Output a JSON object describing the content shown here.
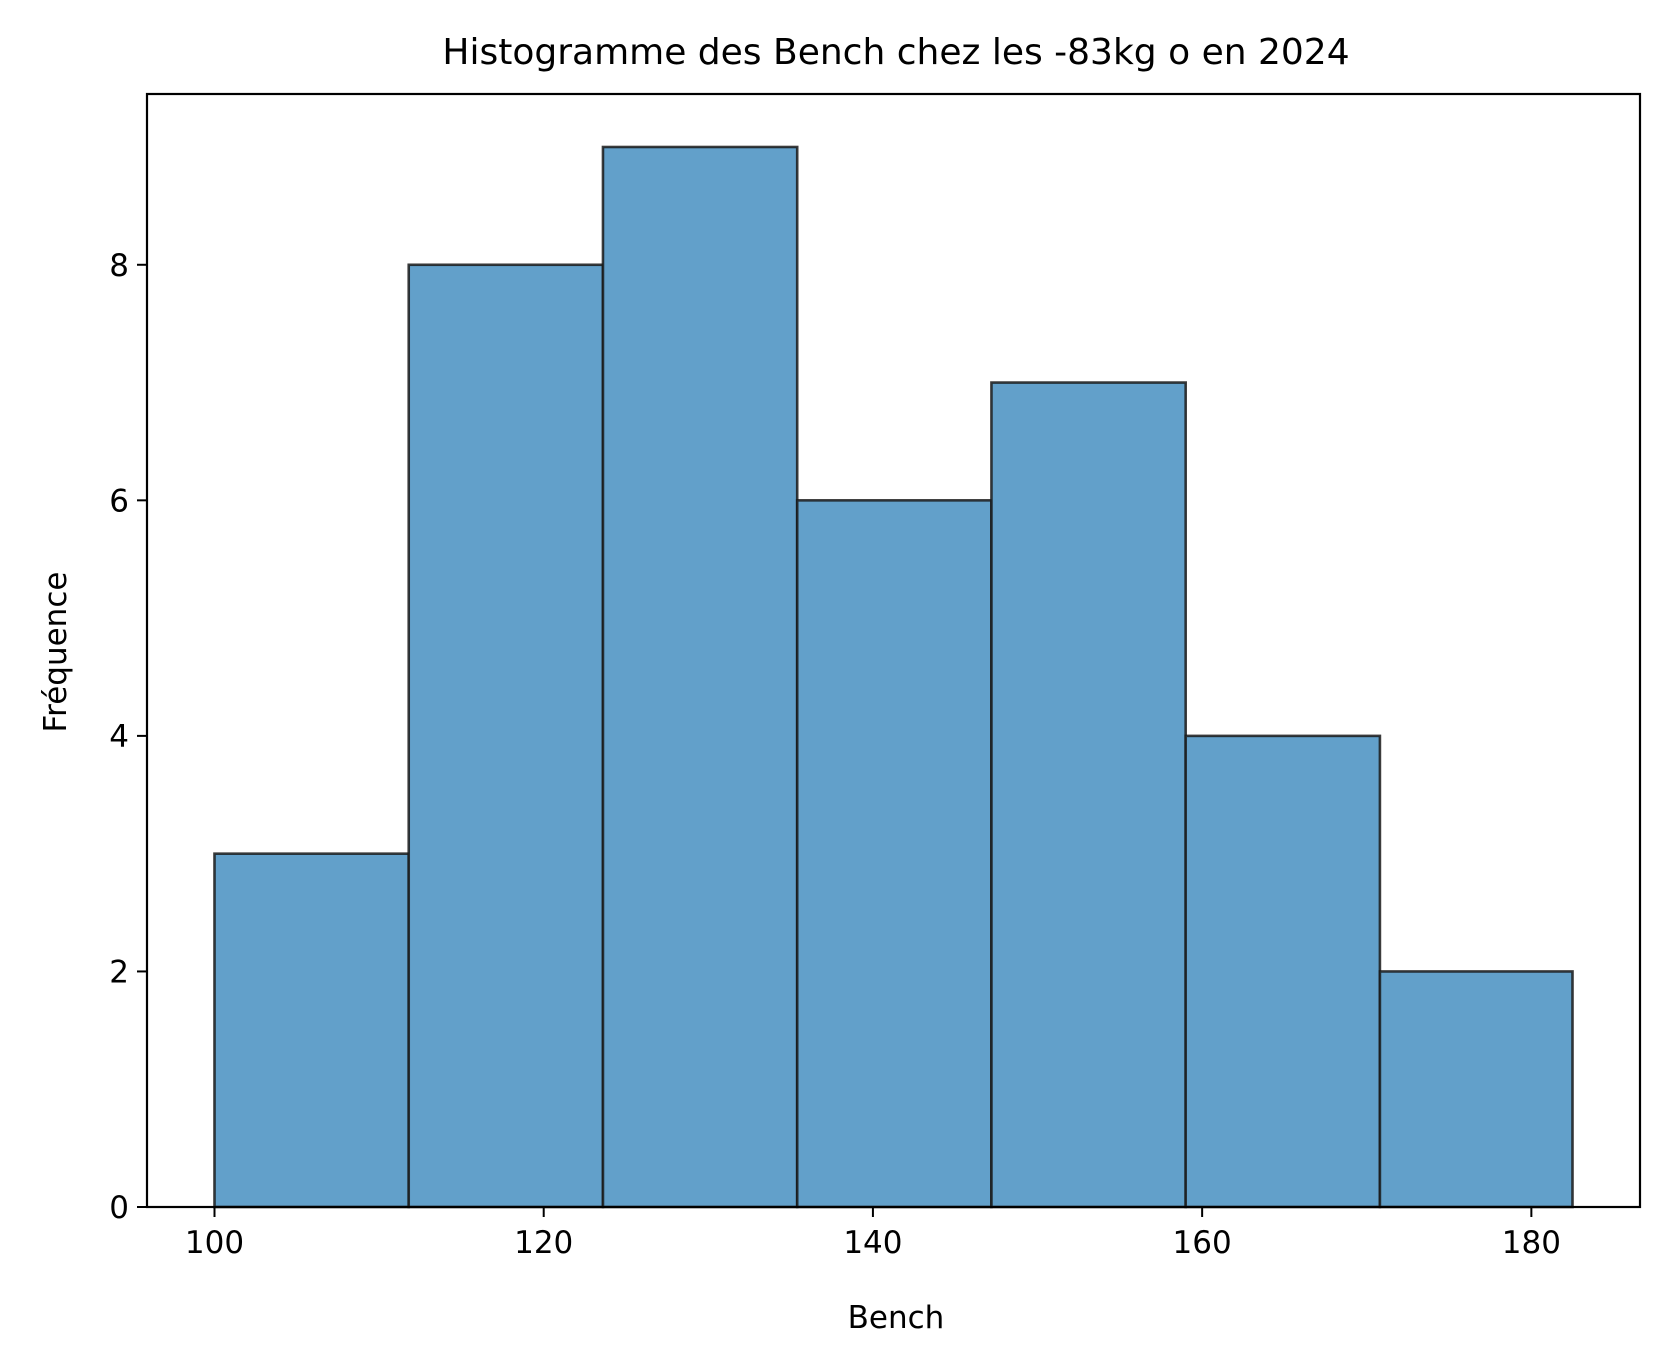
{
  "chart_data": {
    "type": "bar",
    "subtype": "histogram",
    "title": "Histogramme des Bench chez les -83kg o en 2024",
    "xlabel": "Bench",
    "ylabel": "Fréquence",
    "bins": [
      {
        "start": 100.0,
        "end": 111.8,
        "count": 3
      },
      {
        "start": 111.8,
        "end": 123.6,
        "count": 8
      },
      {
        "start": 123.6,
        "end": 135.4,
        "count": 9
      },
      {
        "start": 135.4,
        "end": 147.2,
        "count": 6
      },
      {
        "start": 147.2,
        "end": 159.0,
        "count": 7
      },
      {
        "start": 159.0,
        "end": 170.8,
        "count": 4
      },
      {
        "start": 170.8,
        "end": 182.5,
        "count": 2
      }
    ],
    "xlim": [
      95.9,
      186.6
    ],
    "ylim": [
      0,
      9.45
    ],
    "xticks": [
      100,
      120,
      140,
      160,
      180
    ],
    "yticks": [
      0,
      2,
      4,
      6,
      8
    ],
    "bar_color": "#62a0ca",
    "edge_color": "#1a1a1a",
    "grid": false,
    "legend": "none"
  }
}
